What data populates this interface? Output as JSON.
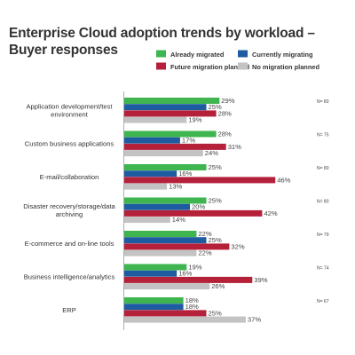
{
  "title": "Enterprise Cloud adoption trends by workload – Buyer responses",
  "colors": {
    "already_migrated": "#3fb54f",
    "currently_migrating": "#1d5ca0",
    "future_migration_planned": "#b5203a",
    "no_migration_planned": "#c3c3c3"
  },
  "chart_data": {
    "type": "bar",
    "orientation": "horizontal",
    "title": "Enterprise Cloud adoption trends by workload – Buyer responses",
    "xlim": [
      0,
      45
    ],
    "grid": false,
    "legend_position": "top-right",
    "categories": [
      "Application development/test environment",
      "Custom business applications",
      "E-mail/collaboration",
      "Disaster recovery/storage/data archiving",
      "E-commerce and on-line tools",
      "Business intelligence/analytics",
      "ERP"
    ],
    "sample_sizes": [
      "N= 80",
      "N= 75",
      "N= 80",
      "N= 80",
      "N= 79",
      "N= 74",
      "N= 67"
    ],
    "series": [
      {
        "name": "Already migrated",
        "color": "#3fb54f",
        "values": [
          29,
          28,
          25,
          25,
          22,
          19,
          18
        ]
      },
      {
        "name": "Currently migrating",
        "color": "#1d5ca0",
        "values": [
          25,
          17,
          16,
          20,
          25,
          16,
          18
        ]
      },
      {
        "name": "Future migration planned",
        "color": "#b5203a",
        "values": [
          28,
          31,
          46,
          42,
          32,
          39,
          25
        ]
      },
      {
        "name": "No migration planned",
        "color": "#c3c3c3",
        "values": [
          19,
          24,
          13,
          14,
          22,
          26,
          37
        ]
      }
    ]
  }
}
